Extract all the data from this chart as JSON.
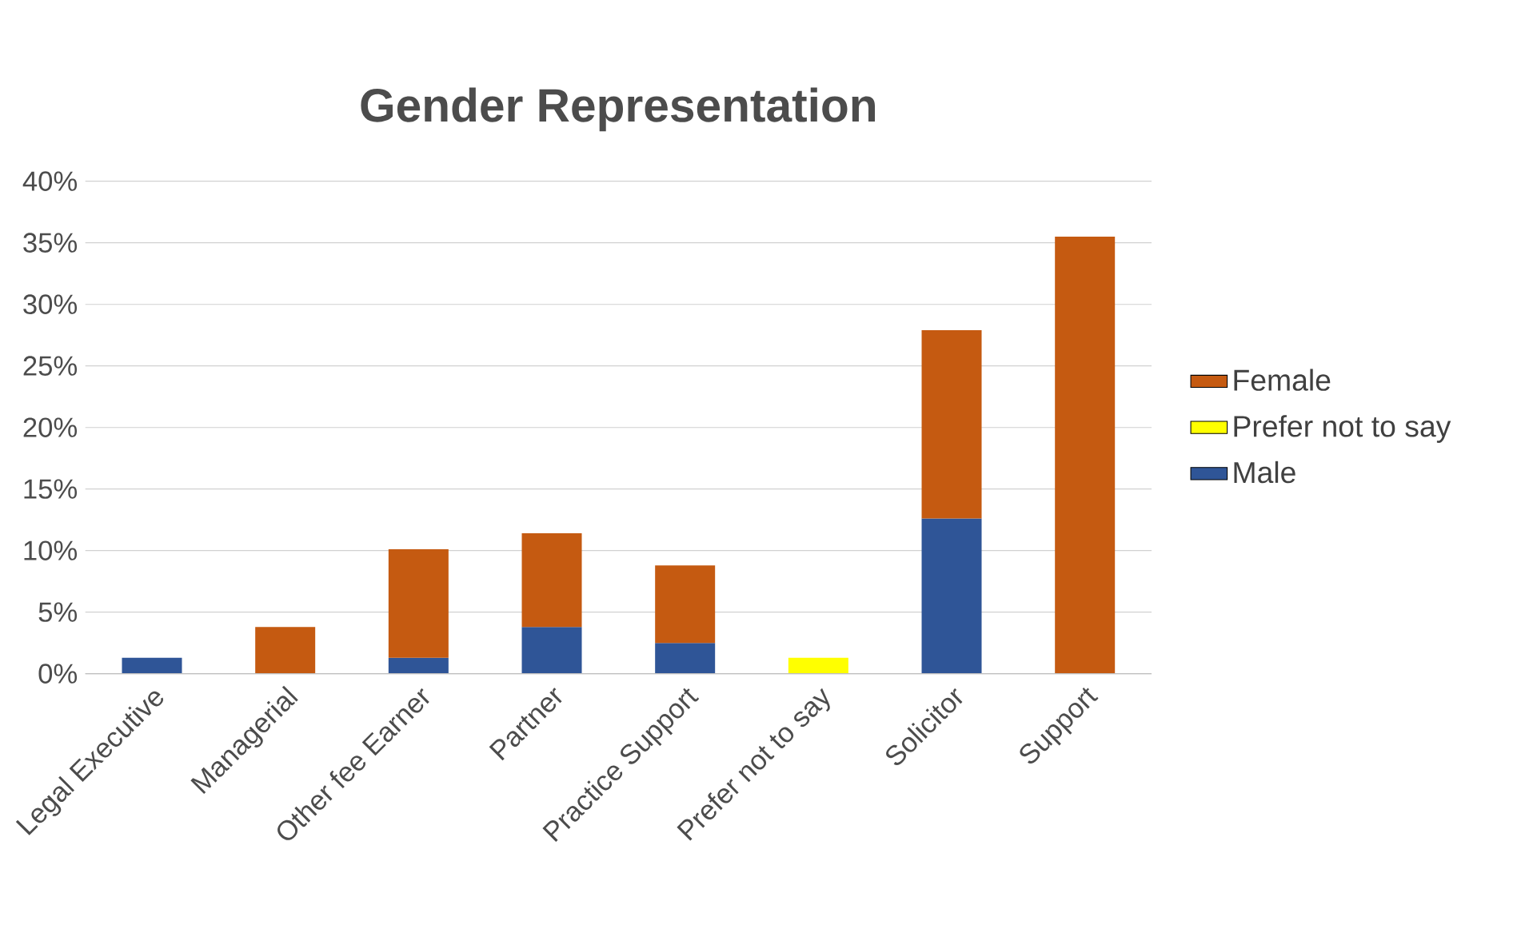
{
  "chart_data": {
    "type": "bar",
    "title": "Gender Representation",
    "stacked": true,
    "categories": [
      "Legal Executive",
      "Managerial",
      "Other fee Earner",
      "Partner",
      "Practice Support",
      "Prefer not to say",
      "Solicitor",
      "Support"
    ],
    "series": [
      {
        "name": "Male",
        "color": "#2f5597",
        "values": [
          1.3,
          null,
          1.3,
          3.8,
          2.5,
          null,
          12.6,
          null
        ]
      },
      {
        "name": "Prefer not to say",
        "color": "#ffff00",
        "values": [
          null,
          null,
          null,
          null,
          null,
          1.3,
          null,
          null
        ]
      },
      {
        "name": "Female",
        "color": "#c55a11",
        "values": [
          null,
          3.8,
          8.8,
          7.6,
          6.3,
          null,
          15.3,
          35.5
        ]
      }
    ],
    "ylim": [
      0,
      40
    ],
    "yticks": [
      {
        "value": 0,
        "label": "0%"
      },
      {
        "value": 5,
        "label": "5%"
      },
      {
        "value": 10,
        "label": "10%"
      },
      {
        "value": 15,
        "label": "15%"
      },
      {
        "value": 20,
        "label": "20%"
      },
      {
        "value": 25,
        "label": "25%"
      },
      {
        "value": 30,
        "label": "30%"
      },
      {
        "value": 35,
        "label": "35%"
      },
      {
        "value": 40,
        "label": "40%"
      }
    ],
    "grid": "y",
    "legend": "right"
  }
}
